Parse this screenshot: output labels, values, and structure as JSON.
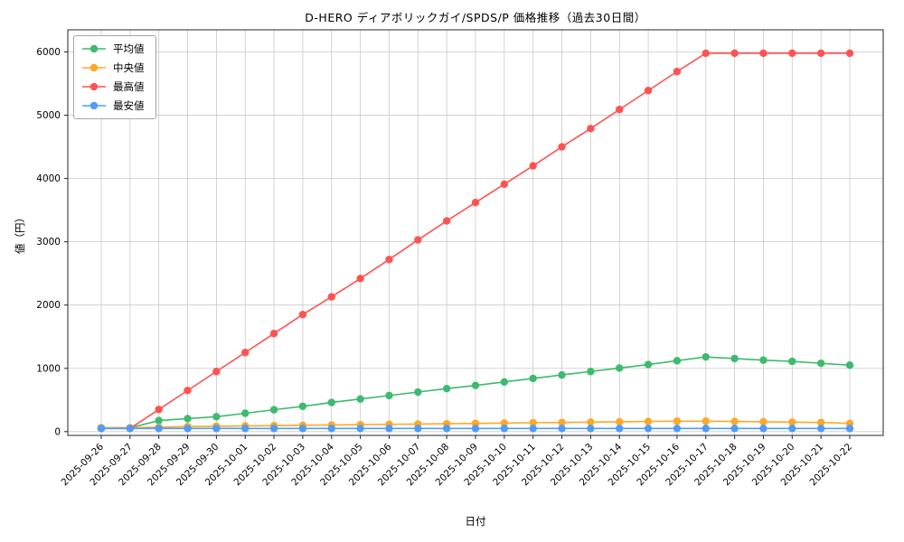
{
  "chart_data": {
    "type": "line",
    "title": "D-HERO ディアボリックガイ/SPDS/P 価格推移（過去30日間）",
    "xlabel": "日付",
    "ylabel": "値（円）",
    "grid": true,
    "legend_position": "upper left",
    "marker": "circle",
    "ylim": [
      -60,
      6350
    ],
    "yticks": [
      0,
      1000,
      2000,
      3000,
      4000,
      5000,
      6000
    ],
    "categories": [
      "2025-09-26",
      "2025-09-27",
      "2025-09-28",
      "2025-09-29",
      "2025-09-30",
      "2025-10-01",
      "2025-10-02",
      "2025-10-03",
      "2025-10-04",
      "2025-10-05",
      "2025-10-06",
      "2025-10-07",
      "2025-10-08",
      "2025-10-09",
      "2025-10-10",
      "2025-10-11",
      "2025-10-12",
      "2025-10-13",
      "2025-10-14",
      "2025-10-15",
      "2025-10-16",
      "2025-10-17",
      "2025-10-18",
      "2025-10-19",
      "2025-10-20",
      "2025-10-21",
      "2025-10-22"
    ],
    "series": [
      {
        "key": "average",
        "name": "平均値",
        "color": "#3dba6e",
        "values": [
          60,
          60,
          175,
          205,
          235,
          290,
          345,
          400,
          460,
          515,
          570,
          625,
          680,
          730,
          785,
          840,
          895,
          950,
          1005,
          1060,
          1120,
          1180,
          1155,
          1130,
          1110,
          1080,
          1050
        ]
      },
      {
        "key": "median",
        "name": "中央値",
        "color": "#ffa726",
        "values": [
          60,
          60,
          70,
          80,
          85,
          90,
          95,
          100,
          105,
          110,
          115,
          120,
          125,
          130,
          135,
          140,
          145,
          150,
          155,
          160,
          165,
          165,
          160,
          155,
          150,
          145,
          130
        ]
      },
      {
        "key": "max",
        "name": "最高値",
        "color": "#ff5252",
        "values": [
          50,
          50,
          350,
          650,
          950,
          1250,
          1550,
          1850,
          2130,
          2420,
          2720,
          3030,
          3330,
          3620,
          3910,
          4200,
          4500,
          4790,
          5090,
          5390,
          5690,
          5980,
          5980,
          5980,
          5980,
          5980,
          5980
        ]
      },
      {
        "key": "min",
        "name": "最安値",
        "color": "#4f9cf7",
        "values": [
          50,
          50,
          50,
          50,
          50,
          50,
          50,
          50,
          50,
          50,
          50,
          50,
          50,
          50,
          50,
          50,
          50,
          50,
          50,
          50,
          50,
          50,
          50,
          50,
          50,
          50,
          50
        ]
      }
    ]
  }
}
